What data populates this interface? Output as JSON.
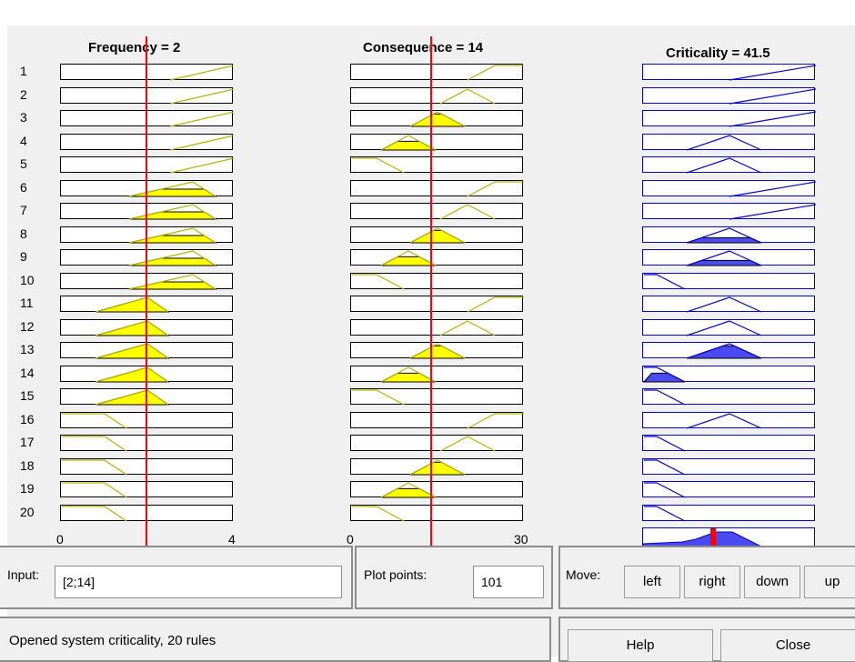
{
  "columns": [
    {
      "title": "Frequency = 2",
      "axis_min": "0",
      "axis_max": "4"
    },
    {
      "title": "Consequence = 14",
      "axis_min": "0",
      "axis_max": "30"
    },
    {
      "title": "Criticality = 41.5"
    }
  ],
  "rule_numbers": [
    "1",
    "2",
    "3",
    "4",
    "5",
    "6",
    "7",
    "8",
    "9",
    "10",
    "11",
    "12",
    "13",
    "14",
    "15",
    "16",
    "17",
    "18",
    "19",
    "20"
  ],
  "colors": {
    "input_fill": "#ffff00",
    "input_line": "#b4b400",
    "output_fill": "#4a4af0",
    "output_line": "#0000c8",
    "marker": "#ff0000"
  },
  "input_panel": {
    "label": "Input:",
    "value": "[2;14]"
  },
  "plot_points": {
    "label": "Plot points:",
    "value": "101"
  },
  "move_panel": {
    "label": "Move:",
    "buttons": [
      "left",
      "right",
      "down",
      "up"
    ]
  },
  "status": {
    "text": "Opened system criticality, 20 rules"
  },
  "help_label": "Help",
  "close_label": "Close"
}
